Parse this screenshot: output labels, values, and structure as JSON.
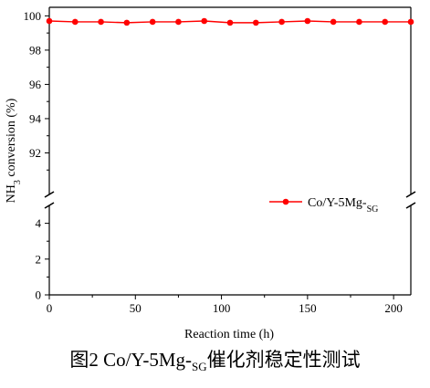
{
  "chart_data": {
    "type": "line",
    "broken_y_axis": true,
    "xlabel": "Reaction time (h)",
    "xlim": [
      0,
      210
    ],
    "xticks": [
      0,
      50,
      100,
      150,
      200
    ],
    "ylabel": "NH3 conversion (%)",
    "ylabel_parts": {
      "main": "NH",
      "sub": "3",
      "rest": " conversion (%)"
    },
    "ylim_lower": [
      0,
      5
    ],
    "yticks_lower": [
      0,
      2,
      4
    ],
    "ylim_upper": [
      90,
      100.5
    ],
    "yticks_upper": [
      92,
      94,
      96,
      98,
      100
    ],
    "legend": "right",
    "grid": false,
    "series": [
      {
        "name": "Co/Y-5Mg-SG",
        "name_parts": {
          "main": "Co/Y-5Mg-",
          "sub": "SG"
        },
        "color": "#ff0000",
        "marker": "circle",
        "x": [
          0,
          15,
          30,
          45,
          60,
          75,
          90,
          105,
          120,
          135,
          150,
          165,
          180,
          195,
          210
        ],
        "y": [
          99.7,
          99.65,
          99.65,
          99.6,
          99.65,
          99.65,
          99.7,
          99.6,
          99.6,
          99.65,
          99.7,
          99.65,
          99.65,
          99.65,
          99.65
        ]
      }
    ]
  },
  "caption": {
    "prefix": "图2 Co/Y-5Mg-",
    "sub": "SG",
    "suffix": "催化剂稳定性测试"
  }
}
